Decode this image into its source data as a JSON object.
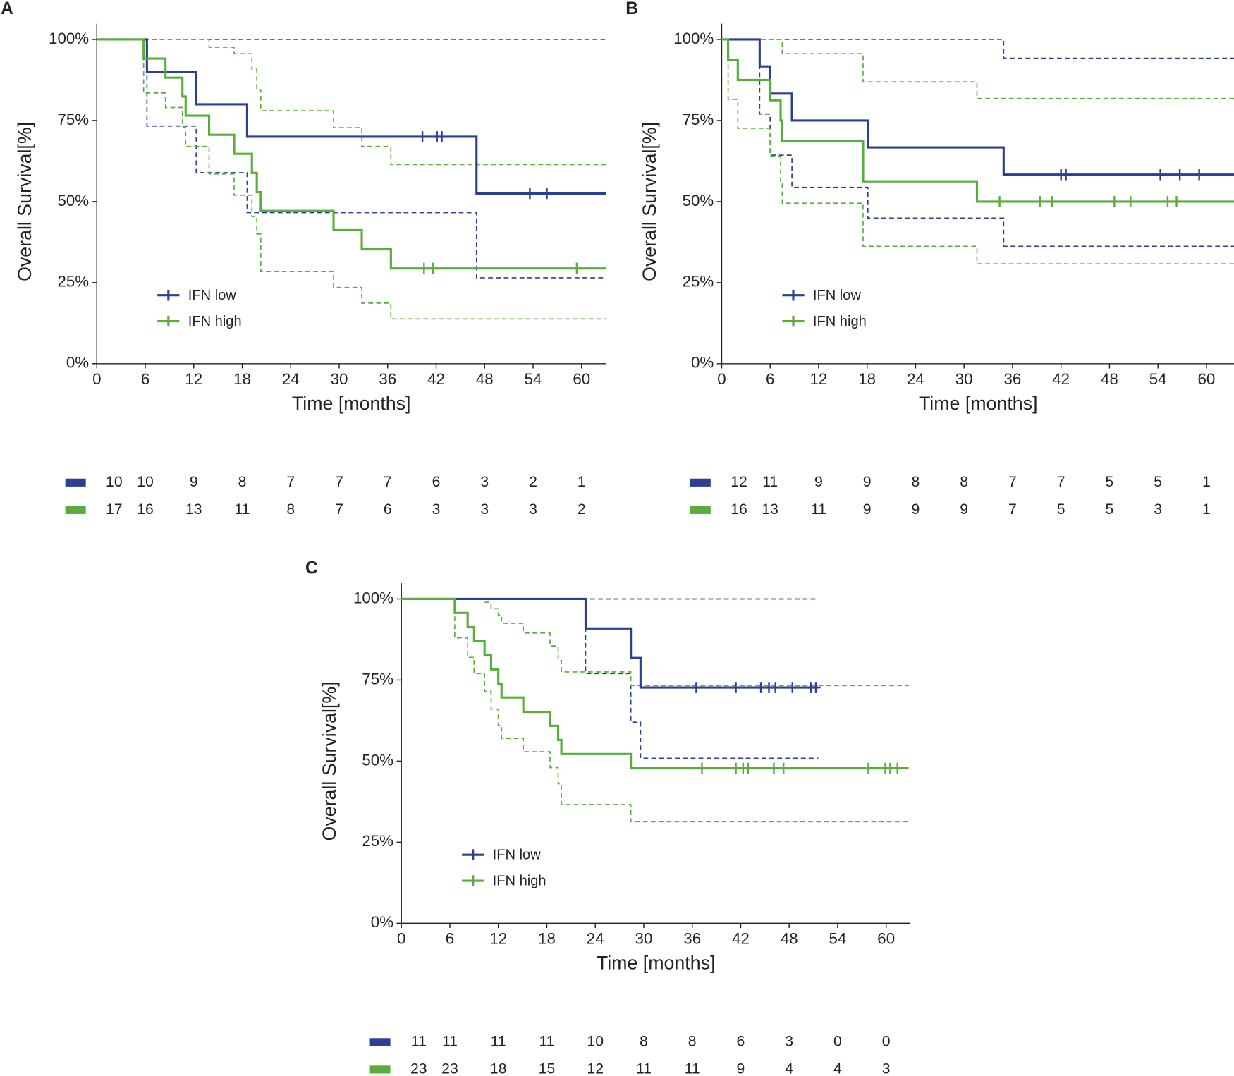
{
  "chart_data": [
    {
      "type": "survival",
      "panel": "A",
      "ylabel": "Overall Survival[%]",
      "xlabel": "Time [months]",
      "legend": "lower left",
      "xlim": [
        0,
        63
      ],
      "xticks": [
        0,
        6,
        12,
        18,
        24,
        30,
        36,
        42,
        48,
        54,
        60
      ],
      "ylim": [
        0,
        100
      ],
      "yticks": [
        {
          "value": 0,
          "label": "0%"
        },
        {
          "value": 25,
          "label": "25%"
        },
        {
          "value": 50,
          "label": "50%"
        },
        {
          "value": 75,
          "label": "75%"
        },
        {
          "value": 100,
          "label": "100%"
        }
      ],
      "series": [
        {
          "name": "IFN low",
          "color": "#2b3f94",
          "x": [
            0,
            6.2,
            12.3,
            18.6,
            47
          ],
          "values": [
            100,
            90,
            80,
            70,
            52.5
          ],
          "ci_lower": [
            100,
            73.3,
            58.9,
            46.6,
            26.5
          ],
          "ci_upper": [
            100,
            100,
            100,
            100,
            100
          ],
          "end": 63,
          "censored_x": [
            40.3,
            42.1,
            42.7,
            53.6,
            55.7
          ],
          "censored_values": [
            70,
            70,
            70,
            52.5,
            52.5
          ],
          "at_risk": [
            10,
            10,
            9,
            8,
            7,
            7,
            7,
            6,
            3,
            2,
            1
          ]
        },
        {
          "name": "IFN high",
          "color": "#5aac3c",
          "x": [
            0,
            5.8,
            8.5,
            10.6,
            11.0,
            13.9,
            17.0,
            19.2,
            19.8,
            20.3,
            29.3,
            32.8,
            36.4
          ],
          "values": [
            100,
            94.1,
            88.2,
            82.4,
            76.5,
            70.6,
            64.7,
            58.8,
            52.9,
            47.1,
            41.2,
            35.3,
            29.4
          ],
          "ci_lower": [
            100,
            83.5,
            79,
            73,
            67,
            58.5,
            52,
            45.4,
            40,
            28.4,
            23.5,
            18.7,
            13.8
          ],
          "ci_upper": [
            100,
            100,
            100,
            100,
            100,
            97.6,
            95.6,
            90.8,
            84.5,
            78,
            72.8,
            67,
            61.4
          ],
          "end": 63,
          "censored_x": [
            40.5,
            41.6,
            59.4
          ],
          "censored_values": [
            29.4,
            29.4,
            29.4
          ],
          "at_risk": [
            17,
            16,
            13,
            11,
            8,
            7,
            6,
            3,
            3,
            3,
            2
          ]
        }
      ]
    },
    {
      "type": "survival",
      "panel": "B",
      "ylabel": "Overall Survival[%]",
      "xlabel": "Time [months]",
      "legend": "lower left",
      "xlim": [
        0,
        63.5
      ],
      "xticks": [
        0,
        6,
        12,
        18,
        24,
        30,
        36,
        42,
        48,
        54,
        60
      ],
      "ylim": [
        0,
        100
      ],
      "yticks": [
        {
          "value": 0,
          "label": "0%"
        },
        {
          "value": 25,
          "label": "25%"
        },
        {
          "value": 50,
          "label": "50%"
        },
        {
          "value": 75,
          "label": "75%"
        },
        {
          "value": 100,
          "label": "100%"
        }
      ],
      "series": [
        {
          "name": "IFN low",
          "color": "#2b3f94",
          "x": [
            0,
            4.7,
            6.0,
            8.7,
            18.1,
            34.9
          ],
          "values": [
            100,
            91.7,
            83.3,
            75,
            66.7,
            58.3
          ],
          "ci_lower": [
            100,
            77,
            64.3,
            54.4,
            44.9,
            36.2
          ],
          "ci_upper": [
            100,
            100,
            100,
            100,
            100,
            94.2
          ],
          "end": 63.5,
          "censored_x": [
            42.0,
            42.6,
            54.3,
            56.7,
            59.1
          ],
          "censored_values": [
            58.3,
            58.3,
            58.3,
            58.3,
            58.3
          ],
          "at_risk": [
            12,
            11,
            9,
            9,
            8,
            8,
            7,
            7,
            5,
            5,
            1
          ]
        },
        {
          "name": "IFN high",
          "color": "#5aac3c",
          "x": [
            0,
            0.8,
            2.0,
            6.0,
            7.3,
            7.5,
            17.5,
            31.6
          ],
          "values": [
            100,
            93.75,
            87.5,
            81.25,
            75,
            68.75,
            56.25,
            50
          ],
          "ci_lower": [
            100,
            81.5,
            72.6,
            64,
            56,
            49.5,
            36.2,
            30.8
          ],
          "ci_upper": [
            100,
            100,
            100,
            100,
            100,
            95.6,
            86.9,
            81.8
          ],
          "end": 63.5,
          "censored_x": [
            34.4,
            39.4,
            40.9,
            48.6,
            50.6,
            55.2,
            56.3
          ],
          "censored_values": [
            50,
            50,
            50,
            50,
            50,
            50,
            50
          ],
          "at_risk": [
            16,
            13,
            11,
            9,
            9,
            9,
            7,
            5,
            5,
            3,
            1
          ]
        }
      ]
    },
    {
      "type": "survival",
      "panel": "C",
      "ylabel": "Overall Survival[%]",
      "xlabel": "Time [months]",
      "legend": "lower left",
      "xlim": [
        0,
        63
      ],
      "xticks": [
        0,
        6,
        12,
        18,
        24,
        30,
        36,
        42,
        48,
        54,
        60
      ],
      "ylim": [
        0,
        100
      ],
      "yticks": [
        {
          "value": 0,
          "label": "0%"
        },
        {
          "value": 25,
          "label": "25%"
        },
        {
          "value": 50,
          "label": "50%"
        },
        {
          "value": 75,
          "label": "75%"
        },
        {
          "value": 100,
          "label": "100%"
        }
      ],
      "series": [
        {
          "name": "IFN low",
          "color": "#2b3f94",
          "x": [
            0,
            22.8,
            28.4,
            29.6
          ],
          "values": [
            100,
            90.9,
            81.8,
            72.7
          ],
          "ci_lower": [
            100,
            77,
            62,
            50.9
          ],
          "ci_upper": [
            100,
            100,
            100,
            100
          ],
          "end": 51.6,
          "censored_x": [
            36.5,
            41.4,
            44.5,
            45.5,
            46.3,
            48.4,
            50.7,
            51.3
          ],
          "censored_values": [
            72.7,
            72.7,
            72.7,
            72.7,
            72.7,
            72.7,
            72.7,
            72.7
          ],
          "at_risk": [
            11,
            11,
            11,
            11,
            10,
            8,
            8,
            6,
            3,
            0,
            0
          ]
        },
        {
          "name": "IFN high",
          "color": "#5aac3c",
          "x": [
            0,
            6.6,
            8.2,
            9.0,
            10.3,
            11.1,
            12.0,
            12.4,
            15.1,
            18.4,
            19.4,
            19.8,
            28.4
          ],
          "values": [
            100,
            95.7,
            91.3,
            87.0,
            82.6,
            78.3,
            73.9,
            69.6,
            65.2,
            60.9,
            56.5,
            52.2,
            47.8
          ],
          "ci_lower": [
            100,
            88,
            82,
            77,
            71.5,
            66,
            61,
            57,
            52.9,
            48,
            43,
            36.6,
            31.3
          ],
          "ci_upper": [
            100,
            100,
            100,
            100,
            99,
            97,
            95,
            92.5,
            89.5,
            85.5,
            81,
            77.5,
            73.3
          ],
          "end": 62.8,
          "censored_x": [
            37.2,
            41.4,
            42.3,
            42.9,
            46.1,
            47.3,
            57.8,
            59.9,
            60.5,
            61.4
          ],
          "censored_values": [
            47.8,
            47.8,
            47.8,
            47.8,
            47.8,
            47.8,
            47.8,
            47.8,
            47.8,
            47.8
          ],
          "at_risk": [
            23,
            23,
            18,
            15,
            12,
            11,
            11,
            9,
            4,
            4,
            3
          ]
        }
      ]
    }
  ]
}
